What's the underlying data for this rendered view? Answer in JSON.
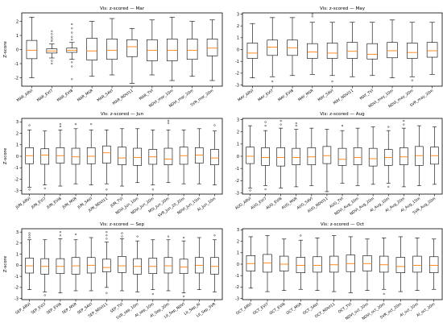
{
  "figure": {
    "ylabel": "Z-score"
  },
  "chart_data": [
    {
      "type": "box",
      "title": "Vis: z-scored — Mar",
      "ylabel": "Z-score",
      "ylim": [
        -2.6,
        2.6
      ],
      "yticks": [
        -2,
        -1,
        0,
        1,
        2
      ],
      "categories": [
        "MAR_ARVI",
        "MAR_EVI7",
        "MAR_EVI8",
        "MAR_MSR",
        "MAR_SAVI",
        "MAR_NDVI11",
        "MAR_TVI",
        "NDVI_mar_10m",
        "NDVI_mar_20m",
        "SVR_mar_20m"
      ],
      "boxes": [
        {
          "whislo": -2.0,
          "q1": -0.65,
          "med": -0.05,
          "q3": 0.65,
          "whishi": 2.3,
          "fliers": []
        },
        {
          "whislo": -0.6,
          "q1": -0.25,
          "med": -0.1,
          "q3": 0.05,
          "whishi": 0.4,
          "fliers": [
            0.6,
            0.75,
            0.9,
            1.1,
            1.3,
            -0.8,
            -1.0
          ]
        },
        {
          "whislo": -0.7,
          "q1": -0.2,
          "med": -0.05,
          "q3": 0.1,
          "whishi": 0.5,
          "fliers": [
            0.7,
            0.9,
            1.2,
            1.5,
            1.8,
            -0.9,
            -1.2,
            -2.1
          ]
        },
        {
          "whislo": -1.9,
          "q1": -0.75,
          "med": -0.1,
          "q3": 0.8,
          "whishi": 2.0,
          "fliers": []
        },
        {
          "whislo": -1.8,
          "q1": -0.7,
          "med": -0.05,
          "q3": 0.75,
          "whishi": 2.2,
          "fliers": []
        },
        {
          "whislo": -2.4,
          "q1": -0.5,
          "med": 0.2,
          "q3": 0.7,
          "whishi": 1.5,
          "fliers": []
        },
        {
          "whislo": -1.8,
          "q1": -0.8,
          "med": -0.05,
          "q3": 0.7,
          "whishi": 2.1,
          "fliers": []
        },
        {
          "whislo": -2.2,
          "q1": -0.8,
          "med": -0.05,
          "q3": 0.75,
          "whishi": 2.3,
          "fliers": []
        },
        {
          "whislo": -1.9,
          "q1": -0.7,
          "med": -0.05,
          "q3": 0.75,
          "whishi": 2.0,
          "fliers": []
        },
        {
          "whislo": -2.2,
          "q1": -0.45,
          "med": 0.1,
          "q3": 0.75,
          "whishi": 2.1,
          "fliers": []
        }
      ]
    },
    {
      "type": "box",
      "title": "Vis: z-scored — May",
      "ylabel": "",
      "ylim": [
        -3.1,
        3.1
      ],
      "yticks": [
        -3,
        -2,
        -1,
        0,
        1,
        2,
        3
      ],
      "categories": [
        "MAY_ARVI",
        "MAY_EVI7",
        "MAY_EVI8",
        "MAY_MSR",
        "MAY_SAVI",
        "MAY_NDVI11",
        "MAY_TVI",
        "NDVI_may_10m",
        "NDVI_may_20m",
        "SVR_may_20m"
      ],
      "boxes": [
        {
          "whislo": -2.4,
          "q1": -0.75,
          "med": -0.3,
          "q3": 0.55,
          "whishi": 2.2,
          "fliers": []
        },
        {
          "whislo": -2.3,
          "q1": -0.5,
          "med": 0.2,
          "q3": 0.8,
          "whishi": 2.7,
          "fliers": [
            -2.7
          ]
        },
        {
          "whislo": -2.2,
          "q1": -0.5,
          "med": 0.15,
          "q3": 0.8,
          "whishi": 2.7,
          "fliers": []
        },
        {
          "whislo": -2.1,
          "q1": -0.75,
          "med": -0.2,
          "q3": 0.5,
          "whishi": 2.3,
          "fliers": [
            2.8,
            3.0
          ]
        },
        {
          "whislo": -2.2,
          "q1": -0.75,
          "med": -0.3,
          "q3": 0.55,
          "whishi": 2.3,
          "fliers": [
            -2.7
          ]
        },
        {
          "whislo": -2.3,
          "q1": -0.75,
          "med": -0.15,
          "q3": 0.6,
          "whishi": 2.3,
          "fliers": []
        },
        {
          "whislo": -2.2,
          "q1": -0.8,
          "med": -0.4,
          "q3": 0.5,
          "whishi": 2.3,
          "fliers": []
        },
        {
          "whislo": -2.4,
          "q1": -0.7,
          "med": -0.1,
          "q3": 0.6,
          "whishi": 2.5,
          "fliers": []
        },
        {
          "whislo": -2.3,
          "q1": -0.75,
          "med": -0.25,
          "q3": 0.55,
          "whishi": 2.3,
          "fliers": [
            -2.6
          ]
        },
        {
          "whislo": -2.1,
          "q1": -0.65,
          "med": -0.1,
          "q3": 0.6,
          "whishi": 2.3,
          "fliers": []
        }
      ]
    },
    {
      "type": "box",
      "title": "Vis: z-scored — Jun",
      "ylabel": "Z-score",
      "ylim": [
        -3.3,
        3.3
      ],
      "yticks": [
        -3,
        -2,
        -1,
        0,
        1,
        2,
        3
      ],
      "categories": [
        "JUN_ARVI",
        "JUN_EVI7",
        "JUN_EVI8",
        "JUN_MSR",
        "JUN_SAVI",
        "JUN_NDVI11",
        "JUN_TVI",
        "NDVI_Jun_10m",
        "NDVI_Jun_20m",
        "MSI_Jun_20m",
        "SVR_Jun_20_20m",
        "NDVI_Jun_15m",
        "AI_Jun_10m"
      ],
      "boxes": [
        {
          "whislo": -2.7,
          "q1": -0.65,
          "med": 0.05,
          "q3": 0.75,
          "whishi": 2.3,
          "fliers": [
            2.7,
            -2.9
          ]
        },
        {
          "whislo": -2.5,
          "q1": -0.7,
          "med": 0.1,
          "q3": 0.65,
          "whishi": 2.2,
          "fliers": [
            -2.8
          ]
        },
        {
          "whislo": -2.6,
          "q1": -0.6,
          "med": 0.05,
          "q3": 0.75,
          "whishi": 2.3,
          "fliers": [
            2.6,
            2.8
          ]
        },
        {
          "whislo": -2.4,
          "q1": -0.7,
          "med": -0.05,
          "q3": 0.7,
          "whishi": 2.4,
          "fliers": [
            2.8
          ]
        },
        {
          "whislo": -2.5,
          "q1": -0.65,
          "med": 0.0,
          "q3": 0.75,
          "whishi": 2.3,
          "fliers": [
            2.8
          ]
        },
        {
          "whislo": -2.4,
          "q1": -0.6,
          "med": 0.3,
          "q3": 0.9,
          "whishi": 2.3,
          "fliers": [
            -2.9
          ]
        },
        {
          "whislo": -2.6,
          "q1": -0.75,
          "med": -0.15,
          "q3": 0.8,
          "whishi": 2.4,
          "fliers": []
        },
        {
          "whislo": -2.3,
          "q1": -0.8,
          "med": -0.1,
          "q3": 0.7,
          "whishi": 2.4,
          "fliers": []
        },
        {
          "whislo": -2.5,
          "q1": -0.7,
          "med": -0.05,
          "q3": 0.6,
          "whishi": 2.3,
          "fliers": [
            -2.9
          ]
        },
        {
          "whislo": -2.3,
          "q1": -0.75,
          "med": -0.25,
          "q3": 0.7,
          "whishi": 2.3,
          "fliers": [
            2.9,
            3.1
          ]
        },
        {
          "whislo": -2.4,
          "q1": -0.7,
          "med": 0.05,
          "q3": 0.8,
          "whishi": 2.3,
          "fliers": []
        },
        {
          "whislo": -2.4,
          "q1": -0.6,
          "med": 0.1,
          "q3": 0.75,
          "whishi": 2.4,
          "fliers": []
        },
        {
          "whislo": -2.5,
          "q1": -0.75,
          "med": -0.15,
          "q3": 0.6,
          "whishi": 2.2,
          "fliers": [
            2.7
          ]
        }
      ]
    },
    {
      "type": "box",
      "title": "Vis: z-scored — Aug",
      "ylabel": "",
      "ylim": [
        -3.1,
        3.1
      ],
      "yticks": [
        -3,
        -2,
        -1,
        0,
        1,
        2,
        3
      ],
      "categories": [
        "AUG_ARVI",
        "AUG_EVI7",
        "AUG_EVI8",
        "AUG_MSR",
        "AUG_SAVI",
        "AUG_NDVI11",
        "AUG_TVI",
        "NDVI_Aug_10m",
        "NDVI_Aug_20m",
        "AI_Aug_10m",
        "AI_Aug_20m",
        "AI_Aug_15m",
        "SVR_Aug_20m"
      ],
      "boxes": [
        {
          "whislo": -2.6,
          "q1": -0.6,
          "med": 0.0,
          "q3": 0.75,
          "whishi": 2.5,
          "fliers": [
            -2.8
          ]
        },
        {
          "whislo": -2.4,
          "q1": -0.75,
          "med": -0.1,
          "q3": 0.7,
          "whishi": 2.1,
          "fliers": [
            2.5,
            2.8,
            -2.7
          ]
        },
        {
          "whislo": -2.6,
          "q1": -0.8,
          "med": -0.1,
          "q3": 0.7,
          "whishi": 2.3,
          "fliers": [
            2.6,
            2.9
          ]
        },
        {
          "whislo": -2.5,
          "q1": -0.7,
          "med": -0.1,
          "q3": 0.65,
          "whishi": 2.2,
          "fliers": [
            2.5,
            2.7
          ]
        },
        {
          "whislo": -2.4,
          "q1": -0.7,
          "med": -0.05,
          "q3": 0.7,
          "whishi": 2.3,
          "fliers": []
        },
        {
          "whislo": -2.9,
          "q1": -0.6,
          "med": 0.05,
          "q3": 0.8,
          "whishi": 2.2,
          "fliers": []
        },
        {
          "whislo": -2.2,
          "q1": -0.75,
          "med": -0.25,
          "q3": 0.65,
          "whishi": 2.1,
          "fliers": [
            2.5
          ]
        },
        {
          "whislo": -2.4,
          "q1": -0.7,
          "med": -0.1,
          "q3": 0.7,
          "whishi": 2.3,
          "fliers": []
        },
        {
          "whislo": -2.3,
          "q1": -0.8,
          "med": -0.2,
          "q3": 0.65,
          "whishi": 2.4,
          "fliers": []
        },
        {
          "whislo": -2.2,
          "q1": -0.75,
          "med": -0.1,
          "q3": 0.55,
          "whishi": 2.1,
          "fliers": [
            2.4,
            -2.5
          ]
        },
        {
          "whislo": -2.5,
          "q1": -0.7,
          "med": -0.05,
          "q3": 0.7,
          "whishi": 2.3,
          "fliers": [
            2.6,
            2.9
          ]
        },
        {
          "whislo": -2.4,
          "q1": -0.75,
          "med": 0.05,
          "q3": 0.8,
          "whishi": 2.5,
          "fliers": []
        },
        {
          "whislo": -2.3,
          "q1": -0.65,
          "med": 0.05,
          "q3": 0.75,
          "whishi": 2.4,
          "fliers": []
        }
      ]
    },
    {
      "type": "box",
      "title": "Vis: z-scored — Sep",
      "ylabel": "Z-score",
      "ylim": [
        -3.1,
        3.3
      ],
      "yticks": [
        -3,
        -2,
        -1,
        0,
        1,
        2,
        3
      ],
      "categories": [
        "SEP_ARVI",
        "SEP_EVI7",
        "SEP_EVI8",
        "SEP_MSR",
        "SEP_SAVI",
        "SEP_NDVI11",
        "SEP_TVI",
        "SVR_sep_10m",
        "AI_sep_10m",
        "AI_Sep_20m",
        "LII_Sep_NDVI",
        "LII_Sep_AI",
        "LII_Sep_SVR"
      ],
      "boxes": [
        {
          "whislo": -2.2,
          "q1": -0.7,
          "med": -0.05,
          "q3": 0.65,
          "whishi": 2.3,
          "fliers": [
            2.5,
            2.7,
            2.9
          ]
        },
        {
          "whislo": -2.4,
          "q1": -0.8,
          "med": -0.1,
          "q3": 0.6,
          "whishi": 2.3,
          "fliers": [
            -2.7
          ]
        },
        {
          "whislo": -2.5,
          "q1": -0.75,
          "med": -0.1,
          "q3": 0.6,
          "whishi": 2.4,
          "fliers": [
            2.7,
            3.0
          ]
        },
        {
          "whislo": -2.3,
          "q1": -0.8,
          "med": -0.05,
          "q3": 0.7,
          "whishi": 2.3,
          "fliers": [
            2.8
          ]
        },
        {
          "whislo": -2.3,
          "q1": -0.7,
          "med": 0.0,
          "q3": 0.7,
          "whishi": 2.5,
          "fliers": []
        },
        {
          "whislo": -2.0,
          "q1": -0.6,
          "med": -0.2,
          "q3": 0.55,
          "whishi": 2.1,
          "fliers": [
            2.4,
            2.7,
            3.0,
            -2.5
          ]
        },
        {
          "whislo": -2.3,
          "q1": -0.65,
          "med": -0.05,
          "q3": 0.8,
          "whishi": 2.4,
          "fliers": [
            2.6,
            2.9
          ]
        },
        {
          "whislo": -2.4,
          "q1": -0.8,
          "med": -0.1,
          "q3": 0.6,
          "whishi": 2.2,
          "fliers": [
            2.6
          ]
        },
        {
          "whislo": -2.2,
          "q1": -0.75,
          "med": -0.1,
          "q3": 0.65,
          "whishi": 2.3,
          "fliers": [
            -2.6
          ]
        },
        {
          "whislo": -2.3,
          "q1": -0.7,
          "med": -0.05,
          "q3": 0.7,
          "whishi": 2.3,
          "fliers": [
            2.6
          ]
        },
        {
          "whislo": -2.5,
          "q1": -0.75,
          "med": -0.15,
          "q3": 0.55,
          "whishi": 2.2,
          "fliers": [
            2.5,
            -2.8
          ]
        },
        {
          "whislo": -2.2,
          "q1": -0.7,
          "med": 0.0,
          "q3": 0.7,
          "whishi": 2.5,
          "fliers": []
        },
        {
          "whislo": -2.4,
          "q1": -0.8,
          "med": -0.1,
          "q3": 0.7,
          "whishi": 2.3,
          "fliers": [
            2.7
          ]
        }
      ]
    },
    {
      "type": "box",
      "title": "Vis: z-scored — Oct",
      "ylabel": "",
      "ylim": [
        -3.1,
        3.1
      ],
      "yticks": [
        -3,
        -2,
        -1,
        0,
        1,
        2,
        3
      ],
      "categories": [
        "OCT_ARVI",
        "OCT_EVI7",
        "OCT_EVI8",
        "OCT_MSR",
        "OCT_SAVI",
        "OCT_NDVI11",
        "OCT_TVI",
        "NDVI_oct_10m",
        "NDVI_oct_20m",
        "SVR_oct_20m",
        "AI_oct_10m",
        "AI_oct_20m"
      ],
      "boxes": [
        {
          "whislo": -2.1,
          "q1": -0.6,
          "med": 0.05,
          "q3": 0.75,
          "whishi": 2.4,
          "fliers": []
        },
        {
          "whislo": -2.4,
          "q1": -0.7,
          "med": 0.1,
          "q3": 0.85,
          "whishi": 2.5,
          "fliers": []
        },
        {
          "whislo": -2.3,
          "q1": -0.6,
          "med": 0.0,
          "q3": 0.7,
          "whishi": 2.2,
          "fliers": []
        },
        {
          "whislo": -2.2,
          "q1": -0.75,
          "med": -0.1,
          "q3": 0.6,
          "whishi": 2.1,
          "fliers": [
            2.5
          ]
        },
        {
          "whislo": -2.3,
          "q1": -0.7,
          "med": -0.1,
          "q3": 0.65,
          "whishi": 2.3,
          "fliers": []
        },
        {
          "whislo": -2.4,
          "q1": -0.7,
          "med": -0.05,
          "q3": 0.7,
          "whishi": 2.5,
          "fliers": []
        },
        {
          "whislo": -2.5,
          "q1": -0.65,
          "med": 0.05,
          "q3": 0.8,
          "whishi": 2.4,
          "fliers": []
        },
        {
          "whislo": -2.3,
          "q1": -0.6,
          "med": 0.05,
          "q3": 0.75,
          "whishi": 2.2,
          "fliers": []
        },
        {
          "whislo": -2.2,
          "q1": -0.7,
          "med": -0.05,
          "q3": 0.7,
          "whishi": 2.3,
          "fliers": [
            -2.6
          ]
        },
        {
          "whislo": -2.4,
          "q1": -0.75,
          "med": -0.2,
          "q3": 0.6,
          "whishi": 2.4,
          "fliers": []
        },
        {
          "whislo": -2.3,
          "q1": -0.7,
          "med": -0.1,
          "q3": 0.7,
          "whishi": 2.3,
          "fliers": []
        },
        {
          "whislo": -2.2,
          "q1": -0.75,
          "med": -0.1,
          "q3": 0.65,
          "whishi": 2.2,
          "fliers": []
        }
      ]
    }
  ],
  "colors": {
    "median": "#ff7f0e",
    "box": "#000000",
    "background": "#ffffff"
  }
}
